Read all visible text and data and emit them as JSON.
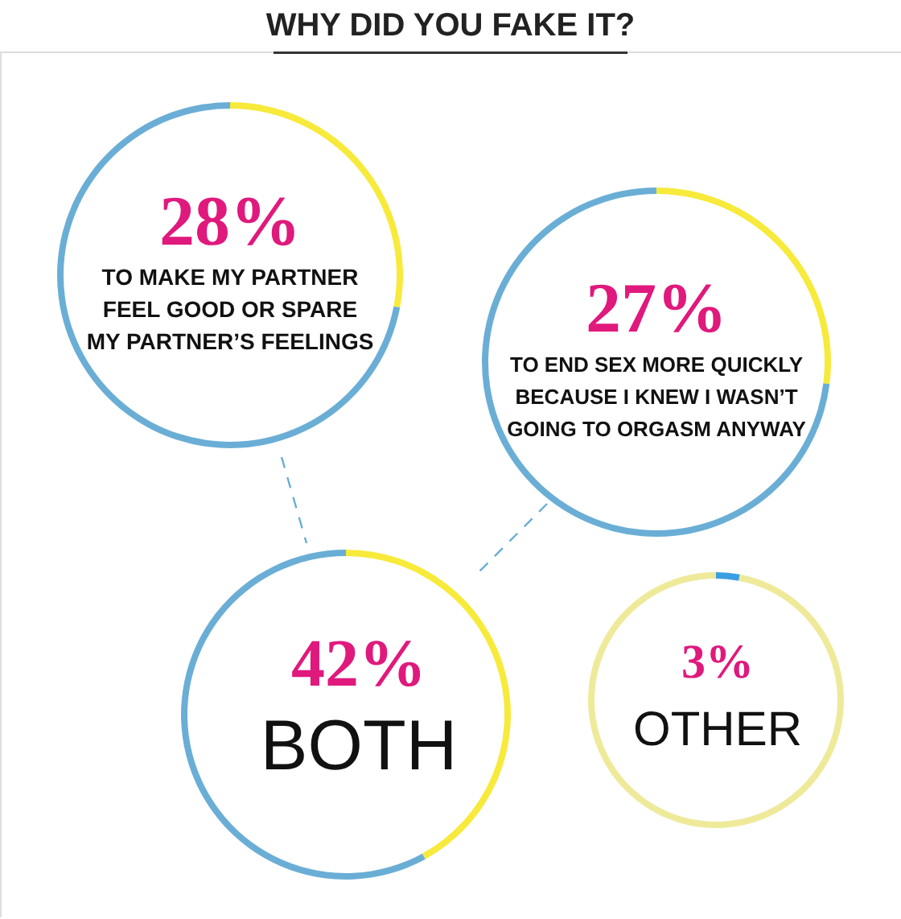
{
  "chart_data": [
    {
      "type": "donut",
      "title": "WHY DID YOU FAKE IT?",
      "categories": [
        "TO MAKE MY PARTNER\nFEEL GOOD OR SPARE\nMY PARTNER’S FEELINGS",
        null
      ],
      "values": [
        28,
        72
      ],
      "colors": [
        "#f7ea3b",
        "#6aaed6"
      ],
      "value_labels": [
        "28%",
        null
      ]
    },
    {
      "type": "donut",
      "categories": [
        "TO END SEX MORE QUICKLY\nBECAUSE I KNEW I WASN’T\nGOING TO ORGASM ANYWAY",
        null
      ],
      "values": [
        27,
        73
      ],
      "colors": [
        "#f7ea3b",
        "#6aaed6"
      ],
      "value_labels": [
        "27%",
        null
      ]
    },
    {
      "type": "donut",
      "categories": [
        "BOTH",
        null
      ],
      "values": [
        42,
        58
      ],
      "colors": [
        "#f7ea3b",
        "#6aaed6"
      ],
      "value_labels": [
        "42%",
        null
      ]
    },
    {
      "type": "donut",
      "categories": [
        "OTHER",
        null
      ],
      "values": [
        3,
        97
      ],
      "colors": [
        "#3a9fe2",
        "#eeea9a"
      ],
      "value_labels": [
        "3%",
        null
      ]
    }
  ]
}
